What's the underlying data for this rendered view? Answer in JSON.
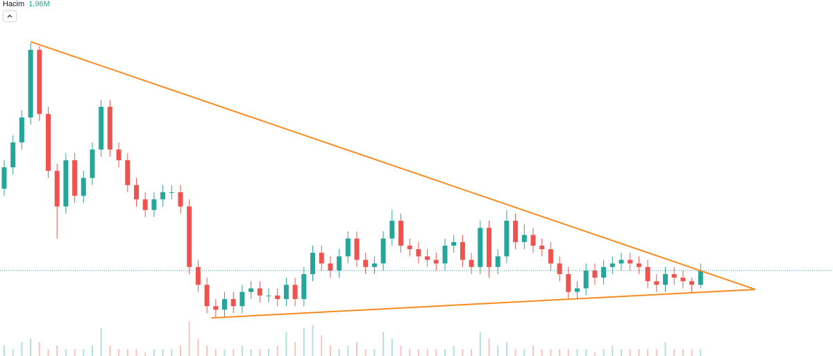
{
  "chart_data": {
    "type": "candlestick",
    "volume_title": "Hacim",
    "volume_last_label": "1,96M",
    "up_color": "#26a69a",
    "down_color": "#ef5350",
    "trendline_color": "#f68b1f",
    "ylim": [
      0,
      100
    ],
    "volume_lim": [
      0,
      12
    ],
    "grid": false,
    "open": [
      47,
      53,
      60,
      67,
      86,
      68,
      52,
      42,
      55,
      45,
      50,
      58,
      70,
      58,
      55,
      48,
      44,
      41,
      44,
      46,
      46,
      42,
      25,
      20,
      14,
      13,
      16,
      14,
      18,
      19,
      17,
      17,
      16,
      20,
      16,
      23,
      29,
      26,
      24,
      28,
      33,
      27,
      25,
      26,
      33,
      38,
      31,
      30,
      28,
      27,
      26,
      31,
      32,
      27,
      25,
      36,
      25,
      28,
      38,
      32,
      34,
      31,
      30,
      26,
      23,
      18,
      19,
      24,
      22,
      25,
      26,
      27,
      26,
      25,
      21,
      20,
      23,
      22,
      21,
      20
    ],
    "high": [
      55,
      62,
      69,
      88,
      87,
      70,
      54,
      57,
      57,
      52,
      60,
      72,
      72,
      60,
      57,
      50,
      46,
      46,
      48,
      48,
      48,
      44,
      27,
      22,
      16,
      18,
      18,
      20,
      21,
      21,
      19,
      19,
      22,
      22,
      25,
      31,
      31,
      28,
      30,
      35,
      35,
      29,
      28,
      35,
      41,
      40,
      33,
      32,
      30,
      29,
      33,
      34,
      34,
      29,
      38,
      38,
      30,
      41,
      40,
      37,
      36,
      33,
      32,
      28,
      25,
      21,
      26,
      26,
      27,
      28,
      29,
      29,
      28,
      27,
      23,
      25,
      25,
      24,
      22,
      26
    ],
    "low": [
      45,
      51,
      58,
      65,
      66,
      50,
      33,
      40,
      43,
      43,
      48,
      56,
      56,
      53,
      46,
      42,
      39,
      39,
      42,
      44,
      40,
      23,
      18,
      12,
      11,
      11,
      12,
      12,
      16,
      15,
      15,
      14,
      14,
      14,
      14,
      21,
      24,
      22,
      22,
      26,
      25,
      23,
      23,
      24,
      31,
      29,
      28,
      26,
      25,
      24,
      24,
      29,
      25,
      23,
      23,
      22,
      23,
      26,
      30,
      30,
      29,
      28,
      24,
      21,
      16,
      16,
      17,
      20,
      20,
      23,
      24,
      24,
      23,
      19,
      18,
      18,
      20,
      19,
      18,
      19
    ],
    "close": [
      53,
      60,
      67,
      86,
      68,
      52,
      42,
      55,
      45,
      50,
      58,
      70,
      58,
      55,
      48,
      44,
      41,
      44,
      46,
      46,
      42,
      25,
      20,
      14,
      13,
      16,
      14,
      18,
      19,
      17,
      17,
      16,
      20,
      16,
      23,
      29,
      26,
      24,
      28,
      33,
      27,
      25,
      26,
      33,
      38,
      31,
      30,
      28,
      27,
      26,
      31,
      32,
      27,
      25,
      36,
      25,
      28,
      38,
      32,
      34,
      31,
      30,
      26,
      23,
      18,
      19,
      24,
      22,
      25,
      26,
      27,
      26,
      25,
      21,
      20,
      23,
      22,
      21,
      20,
      24
    ],
    "volume": [
      3,
      2,
      4,
      5,
      4,
      2,
      3,
      2,
      2,
      2,
      3,
      8,
      3,
      2,
      2,
      2,
      1,
      2,
      2,
      2,
      3,
      10,
      5,
      3,
      2,
      2,
      2,
      3,
      2,
      2,
      2,
      3,
      7,
      4,
      8,
      9,
      6,
      3,
      2,
      3,
      4,
      2,
      2,
      7,
      5,
      3,
      2,
      2,
      2,
      2,
      2,
      3,
      2,
      2,
      7,
      5,
      3,
      4,
      2,
      2,
      3,
      2,
      2,
      2,
      2,
      2,
      2,
      1,
      2,
      3,
      2,
      2,
      2,
      2,
      2,
      4,
      2,
      2,
      2,
      1.96
    ],
    "trendlines": [
      {
        "x": [
          3,
          85.2
        ],
        "y": [
          88.3,
          18.7
        ]
      },
      {
        "x": [
          23.5,
          85.2
        ],
        "y": [
          10.7,
          18.7
        ]
      }
    ]
  }
}
